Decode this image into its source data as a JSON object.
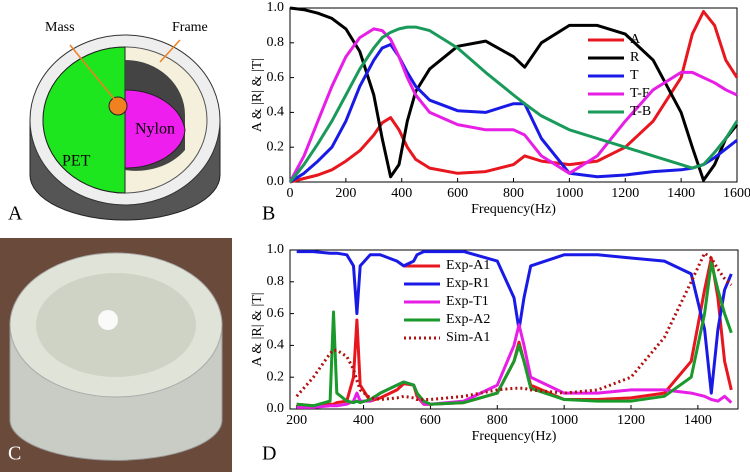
{
  "diagram": {
    "panel_label": "A",
    "labels": [
      "Mass",
      "Frame",
      "PET",
      "Nylon"
    ]
  },
  "photo": {
    "panel_label": "C"
  },
  "chart_data": [
    {
      "type": "line",
      "panel_label": "B",
      "xlabel": "Frequency(Hz)",
      "ylabel": "A & |R| & |T|",
      "xlim": [
        0,
        1600
      ],
      "ylim": [
        0,
        1
      ],
      "xticks": [
        0,
        200,
        400,
        600,
        800,
        1000,
        1200,
        1400,
        1600
      ],
      "yticks": [
        {
          "value": 0,
          "label": "0.0"
        },
        {
          "value": 0.2,
          "label": "0.2"
        },
        {
          "value": 0.4,
          "label": "0.4"
        },
        {
          "value": 0.6,
          "label": "0.6"
        },
        {
          "value": 0.8,
          "label": "0.8"
        },
        {
          "value": 1,
          "label": "1.0"
        }
      ],
      "x": [
        0,
        50,
        100,
        150,
        200,
        250,
        300,
        330,
        360,
        390,
        420,
        450,
        500,
        600,
        700,
        800,
        840,
        900,
        1000,
        1100,
        1200,
        1300,
        1400,
        1440,
        1480,
        1520,
        1560,
        1600
      ],
      "series": [
        {
          "name": "A",
          "color": "#e8161e",
          "values": [
            0,
            0.02,
            0.04,
            0.07,
            0.12,
            0.18,
            0.27,
            0.34,
            0.37,
            0.3,
            0.2,
            0.13,
            0.08,
            0.05,
            0.06,
            0.1,
            0.15,
            0.12,
            0.1,
            0.12,
            0.2,
            0.35,
            0.6,
            0.85,
            0.98,
            0.9,
            0.7,
            0.6
          ]
        },
        {
          "name": "R",
          "color": "#000000",
          "values": [
            1,
            0.99,
            0.97,
            0.94,
            0.88,
            0.75,
            0.5,
            0.25,
            0.03,
            0.1,
            0.35,
            0.52,
            0.65,
            0.78,
            0.81,
            0.72,
            0.66,
            0.8,
            0.9,
            0.9,
            0.85,
            0.7,
            0.4,
            0.2,
            0.01,
            0.1,
            0.25,
            0.33
          ]
        },
        {
          "name": "T",
          "color": "#1a1ae6",
          "values": [
            0,
            0.05,
            0.12,
            0.2,
            0.35,
            0.55,
            0.7,
            0.77,
            0.79,
            0.72,
            0.63,
            0.55,
            0.47,
            0.41,
            0.4,
            0.45,
            0.45,
            0.25,
            0.05,
            0.03,
            0.04,
            0.06,
            0.07,
            0.08,
            0.1,
            0.14,
            0.19,
            0.24
          ]
        },
        {
          "name": "T-F",
          "color": "#e61ee6",
          "values": [
            0,
            0.15,
            0.35,
            0.55,
            0.72,
            0.83,
            0.88,
            0.87,
            0.82,
            0.72,
            0.6,
            0.5,
            0.4,
            0.33,
            0.3,
            0.3,
            0.27,
            0.15,
            0.05,
            0.15,
            0.35,
            0.53,
            0.63,
            0.63,
            0.6,
            0.57,
            0.53,
            0.5
          ]
        },
        {
          "name": "T-B",
          "color": "#1a9a5a",
          "values": [
            0,
            0.1,
            0.22,
            0.35,
            0.5,
            0.65,
            0.77,
            0.83,
            0.86,
            0.88,
            0.89,
            0.89,
            0.87,
            0.77,
            0.63,
            0.5,
            0.45,
            0.38,
            0.3,
            0.25,
            0.2,
            0.15,
            0.1,
            0.08,
            0.1,
            0.17,
            0.25,
            0.35
          ]
        }
      ]
    },
    {
      "type": "line",
      "panel_label": "D",
      "xlabel": "Frequency(Hz)",
      "ylabel": "A & |R| & |T|",
      "xlim": [
        180,
        1520
      ],
      "ylim": [
        0,
        1
      ],
      "xticks": [
        200,
        400,
        600,
        800,
        1000,
        1200,
        1400
      ],
      "yticks": [
        {
          "value": 0,
          "label": "0.0"
        },
        {
          "value": 0.2,
          "label": "0.2"
        },
        {
          "value": 0.4,
          "label": "0.4"
        },
        {
          "value": 0.6,
          "label": "0.6"
        },
        {
          "value": 0.8,
          "label": "0.8"
        },
        {
          "value": 1,
          "label": "1.0"
        }
      ],
      "x": [
        200,
        250,
        300,
        310,
        320,
        350,
        370,
        380,
        390,
        420,
        450,
        500,
        520,
        550,
        560,
        580,
        600,
        700,
        800,
        850,
        865,
        880,
        900,
        1000,
        1100,
        1200,
        1300,
        1380,
        1420,
        1440,
        1460,
        1480,
        1500
      ],
      "series": [
        {
          "name": "Exp-A1",
          "color": "#e8161e",
          "values": [
            0.03,
            0.02,
            0.03,
            0.03,
            0.04,
            0.05,
            0.2,
            0.56,
            0.15,
            0.05,
            0.07,
            0.12,
            0.16,
            0.15,
            0.08,
            0.03,
            0.03,
            0.04,
            0.1,
            0.3,
            0.42,
            0.3,
            0.15,
            0.06,
            0.06,
            0.07,
            0.1,
            0.3,
            0.75,
            0.95,
            0.7,
            0.3,
            0.12
          ]
        },
        {
          "name": "Exp-R1",
          "color": "#1a1ae6",
          "values": [
            0.99,
            0.99,
            0.98,
            0.98,
            0.98,
            0.97,
            0.9,
            0.6,
            0.9,
            0.97,
            0.97,
            0.93,
            0.9,
            0.93,
            0.97,
            0.99,
            0.99,
            0.99,
            0.93,
            0.7,
            0.5,
            0.7,
            0.9,
            0.97,
            0.97,
            0.95,
            0.93,
            0.85,
            0.5,
            0.1,
            0.5,
            0.75,
            0.85
          ]
        },
        {
          "name": "Exp-T1",
          "color": "#e61ee6",
          "values": [
            0.01,
            0.01,
            0.02,
            0.02,
            0.02,
            0.03,
            0.05,
            0.1,
            0.05,
            0.05,
            0.1,
            0.15,
            0.17,
            0.15,
            0.1,
            0.03,
            0.03,
            0.05,
            0.15,
            0.4,
            0.53,
            0.4,
            0.2,
            0.1,
            0.1,
            0.12,
            0.12,
            0.1,
            0.08,
            0.06,
            0.05,
            0.08,
            0.04
          ]
        },
        {
          "name": "Exp-A2",
          "color": "#1a9a2a",
          "values": [
            0.03,
            0.02,
            0.05,
            0.61,
            0.1,
            0.05,
            0.04,
            0.05,
            0.04,
            0.06,
            0.1,
            0.15,
            0.17,
            0.15,
            0.1,
            0.05,
            0.03,
            0.04,
            0.1,
            0.3,
            0.4,
            0.3,
            0.13,
            0.06,
            0.05,
            0.05,
            0.08,
            0.2,
            0.6,
            0.92,
            0.75,
            0.6,
            0.48
          ]
        },
        {
          "name": "Sim-A1",
          "color": "#b01010",
          "line_style": "dotted",
          "values": [
            0.08,
            0.2,
            0.35,
            0.37,
            0.37,
            0.33,
            0.25,
            0.18,
            0.12,
            0.07,
            0.06,
            0.07,
            0.08,
            0.07,
            0.06,
            0.06,
            0.06,
            0.08,
            0.12,
            0.13,
            0.13,
            0.13,
            0.12,
            0.1,
            0.12,
            0.2,
            0.45,
            0.8,
            0.98,
            0.95,
            0.88,
            0.82,
            0.78
          ]
        }
      ]
    }
  ]
}
